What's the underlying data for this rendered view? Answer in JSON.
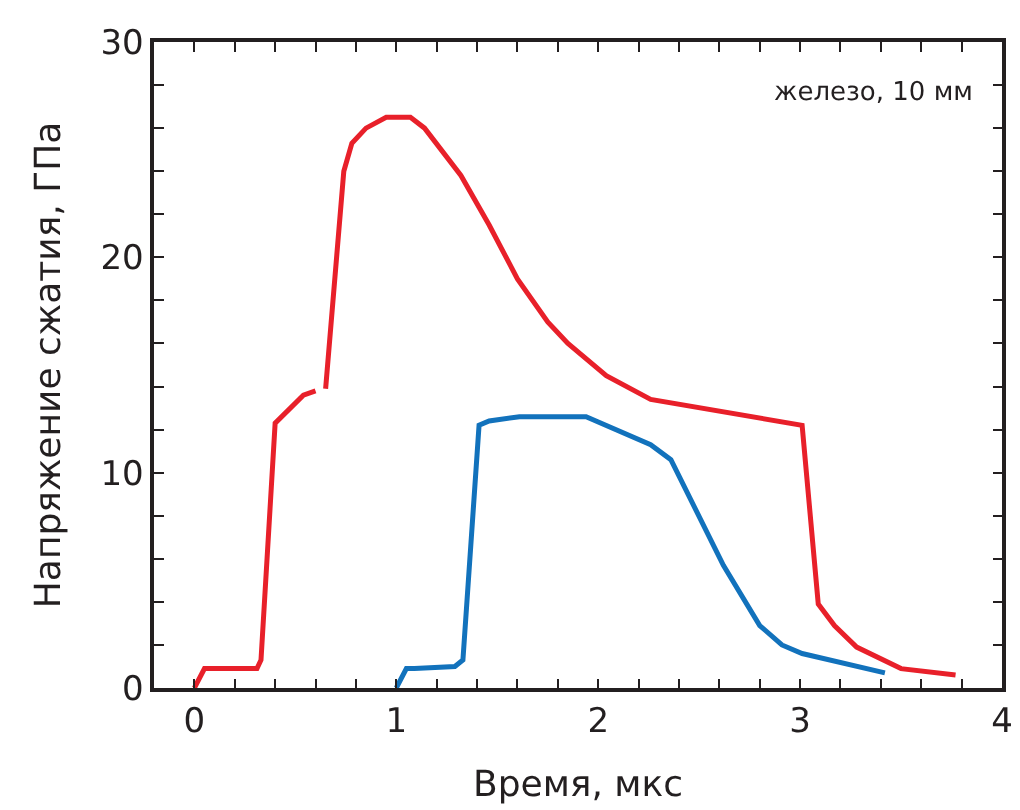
{
  "chart_data": {
    "type": "line",
    "xlabel": "Время, мкс",
    "ylabel": "Напряжение сжатия, ГПа",
    "annotations": [
      "железо, 10 мм"
    ],
    "series": [
      {
        "color": "#e8202a",
        "x": [
          0,
          0.05,
          0.31,
          0.33,
          0.4,
          0.54,
          0.6,
          0.62,
          0.65,
          0.74,
          0.78,
          0.85,
          0.95,
          1.07,
          1.14,
          1.32,
          1.46,
          1.6,
          1.75,
          1.85,
          2.04,
          2.26,
          3.01,
          3.09,
          3.17,
          3.28,
          3.5,
          3.77
        ],
        "values": [
          0,
          0.9,
          0.9,
          1.3,
          12.3,
          13.6,
          13.8,
          null,
          13.9,
          24.0,
          25.3,
          26.0,
          26.5,
          26.5,
          26.0,
          23.8,
          21.5,
          19.0,
          17.0,
          16.0,
          14.5,
          13.4,
          12.2,
          3.9,
          2.9,
          1.9,
          0.9,
          0.6
        ]
      },
      {
        "color": "#1272bc",
        "x": [
          1.0,
          1.05,
          1.09,
          1.29,
          1.33,
          1.41,
          1.46,
          1.61,
          1.77,
          1.94,
          2.26,
          2.36,
          2.62,
          2.8,
          2.91,
          3.01,
          3.42
        ],
        "values": [
          0,
          0.9,
          0.9,
          1.0,
          1.3,
          12.2,
          12.4,
          12.6,
          12.6,
          12.6,
          11.3,
          10.6,
          5.7,
          2.9,
          2.0,
          1.6,
          0.7
        ]
      }
    ],
    "xlim": [
      -0.2,
      4
    ],
    "ylim": [
      0,
      30
    ],
    "xticks": [
      0,
      {
        "value": 0.2,
        "label": null
      },
      {
        "value": 0.4,
        "label": null
      },
      {
        "value": 0.6,
        "label": null
      },
      {
        "value": 0.8,
        "label": null
      },
      1,
      {
        "value": 1.2,
        "label": null
      },
      {
        "value": 1.4,
        "label": null
      },
      {
        "value": 1.6,
        "label": null
      },
      {
        "value": 1.8,
        "label": null
      },
      2,
      {
        "value": 2.2,
        "label": null
      },
      {
        "value": 2.4,
        "label": null
      },
      {
        "value": 2.6,
        "label": null
      },
      {
        "value": 2.8,
        "label": null
      },
      3,
      {
        "value": 3.2,
        "label": null
      },
      {
        "value": 3.4,
        "label": null
      },
      {
        "value": 3.6,
        "label": null
      },
      {
        "value": 3.8,
        "label": null
      },
      4
    ],
    "yticks": [
      0,
      {
        "value": 2,
        "label": null
      },
      {
        "value": 4,
        "label": null
      },
      {
        "value": 6,
        "label": null
      },
      {
        "value": 8,
        "label": null
      },
      10,
      {
        "value": 12,
        "label": null
      },
      {
        "value": 14,
        "label": null
      },
      {
        "value": 16,
        "label": null
      },
      {
        "value": 18,
        "label": null
      },
      20,
      {
        "value": 22,
        "label": null
      },
      {
        "value": 24,
        "label": null
      },
      {
        "value": 26,
        "label": null
      },
      {
        "value": 28,
        "label": null
      },
      30
    ],
    "marker": "none",
    "line_style": "solid"
  }
}
